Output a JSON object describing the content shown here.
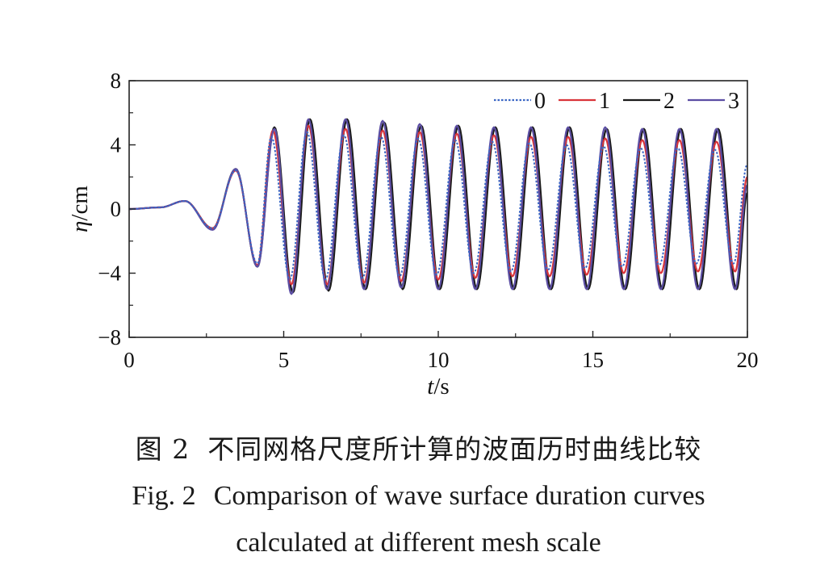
{
  "caption": {
    "zh_label": "图 2",
    "zh_text": "不同网格尺度所计算的波面历时曲线比较",
    "en_label": "Fig. 2",
    "en_line1": "Comparison of wave surface duration curves",
    "en_line2": "calculated at different mesh scale"
  },
  "chart_data": {
    "type": "line",
    "xlabel_italic": "t",
    "xlabel_unit": "/s",
    "ylabel_italic": "η",
    "ylabel_unit": "/cm",
    "xlim": [
      0,
      20
    ],
    "ylim": [
      -8,
      8
    ],
    "xticks": [
      0,
      5,
      10,
      15,
      20
    ],
    "yticks": [
      -8,
      -4,
      0,
      4,
      8
    ],
    "xtick_labels": [
      "0",
      "5",
      "10",
      "15",
      "20"
    ],
    "ytick_labels": [
      "−8",
      "−4",
      "0",
      "4",
      "8"
    ],
    "grid": false,
    "legend_position": "top-right",
    "legend_orientation": "horizontal",
    "wave_period_s": 1.2,
    "series": [
      {
        "name": "0",
        "color": "#3a66c4",
        "dash": "dotted",
        "x": [
          0,
          1.0,
          1.8,
          2.7,
          3.45,
          4.15,
          4.6,
          5.2,
          5.75,
          6.35,
          6.95,
          7.55,
          8.15,
          8.75,
          9.35,
          9.95,
          10.55,
          11.15,
          11.75,
          12.35,
          12.95,
          13.55,
          14.15,
          14.75,
          15.35,
          15.95,
          16.55,
          17.15,
          17.75,
          18.35,
          18.95,
          19.55,
          20.0
        ],
        "y": [
          0,
          0.1,
          0.5,
          -1.2,
          2.4,
          -3.4,
          4.5,
          -4.4,
          4.8,
          -4.4,
          4.6,
          -4.3,
          4.5,
          -4.2,
          4.4,
          -4.1,
          4.3,
          -4.0,
          4.2,
          -3.9,
          4.1,
          -3.8,
          4.0,
          -3.7,
          3.9,
          -3.6,
          3.8,
          -3.5,
          3.8,
          -3.4,
          3.7,
          -3.4,
          2.8
        ]
      },
      {
        "name": "1",
        "color": "#d9343a",
        "dash": "solid",
        "x": [
          0,
          1.0,
          1.8,
          2.7,
          3.45,
          4.15,
          4.65,
          5.25,
          5.8,
          6.4,
          7.0,
          7.6,
          8.2,
          8.8,
          9.4,
          10.0,
          10.6,
          11.2,
          11.8,
          12.4,
          13.0,
          13.6,
          14.2,
          14.8,
          15.4,
          16.0,
          16.6,
          17.2,
          17.8,
          18.4,
          19.0,
          19.6,
          20.0
        ],
        "y": [
          0,
          0.1,
          0.5,
          -1.2,
          2.4,
          -3.5,
          4.9,
          -4.7,
          5.2,
          -4.7,
          5.0,
          -4.6,
          4.9,
          -4.5,
          4.8,
          -4.4,
          4.7,
          -4.3,
          4.6,
          -4.2,
          4.5,
          -4.2,
          4.5,
          -4.1,
          4.4,
          -4.0,
          4.3,
          -4.0,
          4.3,
          -3.9,
          4.2,
          -3.9,
          2.0
        ]
      },
      {
        "name": "2",
        "color": "#1a1a1a",
        "dash": "solid",
        "x": [
          0,
          1.0,
          1.8,
          2.7,
          3.45,
          4.15,
          4.7,
          5.3,
          5.85,
          6.45,
          7.05,
          7.65,
          8.25,
          8.85,
          9.45,
          10.05,
          10.65,
          11.25,
          11.85,
          12.45,
          13.05,
          13.65,
          14.25,
          14.85,
          15.45,
          16.05,
          16.65,
          17.25,
          17.85,
          18.45,
          19.05,
          19.65,
          20.0
        ],
        "y": [
          0,
          0.1,
          0.5,
          -1.2,
          2.5,
          -3.6,
          5.1,
          -5.2,
          5.6,
          -5.1,
          5.6,
          -5.0,
          5.4,
          -5.0,
          5.2,
          -5.0,
          5.2,
          -5.0,
          5.1,
          -5.0,
          5.1,
          -5.0,
          5.1,
          -5.0,
          5.0,
          -5.0,
          5.0,
          -5.0,
          5.0,
          -5.0,
          5.0,
          -5.0,
          1.0
        ]
      },
      {
        "name": "3",
        "color": "#5b4da3",
        "dash": "solid",
        "x": [
          0,
          1.0,
          1.8,
          2.7,
          3.45,
          4.15,
          4.7,
          5.25,
          5.8,
          6.4,
          7.0,
          7.6,
          8.2,
          8.8,
          9.4,
          10.0,
          10.6,
          11.2,
          11.8,
          12.4,
          13.0,
          13.6,
          14.2,
          14.8,
          15.4,
          16.0,
          16.6,
          17.2,
          17.8,
          18.4,
          19.0,
          19.6,
          20.0
        ],
        "y": [
          0,
          0.1,
          0.5,
          -1.3,
          2.5,
          -3.6,
          5.0,
          -5.3,
          5.6,
          -5.0,
          5.6,
          -5.0,
          5.5,
          -4.9,
          5.3,
          -5.0,
          5.2,
          -5.0,
          5.1,
          -5.0,
          5.1,
          -5.0,
          5.1,
          -5.0,
          5.1,
          -5.0,
          5.0,
          -5.0,
          5.0,
          -5.0,
          5.0,
          -5.0,
          1.5
        ]
      }
    ]
  }
}
